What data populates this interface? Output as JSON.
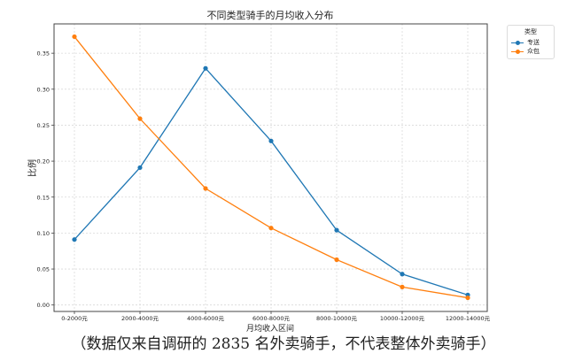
{
  "chart_data": {
    "type": "line",
    "title": "不同类型骑手的月均收入分布",
    "xlabel": "月均收入区间",
    "ylabel": "比例",
    "categories": [
      "0-2000元",
      "2000-4000元",
      "4000-6000元",
      "6000-8000元",
      "8000-10000元",
      "10000-12000元",
      "12000-14000元"
    ],
    "series": [
      {
        "name": "专送",
        "color": "#1f77b4",
        "values": [
          0.091,
          0.191,
          0.329,
          0.228,
          0.104,
          0.043,
          0.014
        ]
      },
      {
        "name": "众包",
        "color": "#ff7f0e",
        "values": [
          0.373,
          0.259,
          0.162,
          0.107,
          0.063,
          0.025,
          0.01
        ]
      }
    ],
    "yticks": [
      "0.00",
      "0.05",
      "0.10",
      "0.15",
      "0.20",
      "0.25",
      "0.30",
      "0.35"
    ],
    "ylim": [
      -0.009,
      0.393
    ],
    "grid": true,
    "legend": {
      "title": "类型",
      "position": "upper right, outside plot"
    }
  },
  "caption": "（数据仅来自调研的 2835 名外卖骑手，不代表整体外卖骑手）"
}
